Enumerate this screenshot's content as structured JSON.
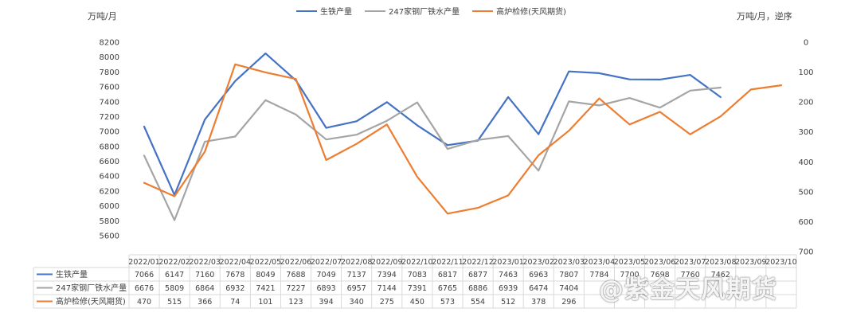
{
  "units": {
    "left": "万吨/月",
    "right": "万吨/月，逆序"
  },
  "watermark": "@紫金天风期货",
  "chart_data": {
    "type": "line",
    "categories": [
      "2022/01",
      "2022/02",
      "2022/03",
      "2022/04",
      "2022/05",
      "2022/06",
      "2022/07",
      "2022/08",
      "2022/09",
      "2022/10",
      "2022/11",
      "2022/12",
      "2023/01",
      "2023/02",
      "2023/03",
      "2023/04",
      "2023/05",
      "2023/06",
      "2023/07",
      "2023/08",
      "2023/09",
      "2023/10"
    ],
    "y_left": {
      "min": 5600,
      "max": 8200,
      "ticks": [
        5600,
        5800,
        6000,
        6200,
        6400,
        6600,
        6800,
        7000,
        7200,
        7400,
        7600,
        7800,
        8000,
        8200
      ]
    },
    "y_right": {
      "min": 0,
      "max": 700,
      "reversed": true,
      "ticks": [
        0,
        100,
        200,
        300,
        400,
        500,
        600,
        700
      ]
    },
    "grid": false,
    "legend_position": "top",
    "series": [
      {
        "name": "生铁产量",
        "color": "#4472C4",
        "axis": "left",
        "values": [
          7066,
          6147,
          7160,
          7678,
          8049,
          7688,
          7049,
          7137,
          7394,
          7083,
          6817,
          6877,
          7463,
          6963,
          7807,
          7784,
          7700,
          7698,
          7760,
          7462,
          null,
          null
        ],
        "table": [
          "7066",
          "6147",
          "7160",
          "7678",
          "8049",
          "7688",
          "7049",
          "7137",
          "7394",
          "7083",
          "6817",
          "6877",
          "7463",
          "6963",
          "7807",
          "7784",
          "7700",
          "7698",
          "7760",
          "7462",
          "",
          ""
        ]
      },
      {
        "name": "247家钢厂铁水产量",
        "color": "#A5A5A5",
        "axis": "left",
        "values": [
          6676,
          5809,
          6864,
          6932,
          7421,
          7227,
          6893,
          6957,
          7144,
          7391,
          6765,
          6886,
          6939,
          6474,
          7404,
          7350,
          7450,
          7320,
          7550,
          7590,
          null,
          null
        ],
        "table": [
          "6676",
          "5809",
          "6864",
          "6932",
          "7421",
          "7227",
          "6893",
          "6957",
          "7144",
          "7391",
          "6765",
          "6886",
          "6939",
          "6474",
          "7404",
          "",
          "",
          "",
          "",
          "",
          "",
          ""
        ]
      },
      {
        "name": "高炉检修(天风期货)",
        "color": "#ED7D31",
        "axis": "right",
        "values": [
          470,
          515,
          366,
          74,
          101,
          123,
          394,
          340,
          275,
          450,
          573,
          554,
          512,
          378,
          296,
          188,
          275,
          233,
          308,
          248,
          158,
          144
        ],
        "table": [
          "470",
          "515",
          "366",
          "74",
          "101",
          "123",
          "394",
          "340",
          "275",
          "450",
          "573",
          "554",
          "512",
          "378",
          "296",
          "",
          "",
          "",
          "",
          "",
          "",
          ""
        ]
      }
    ]
  }
}
